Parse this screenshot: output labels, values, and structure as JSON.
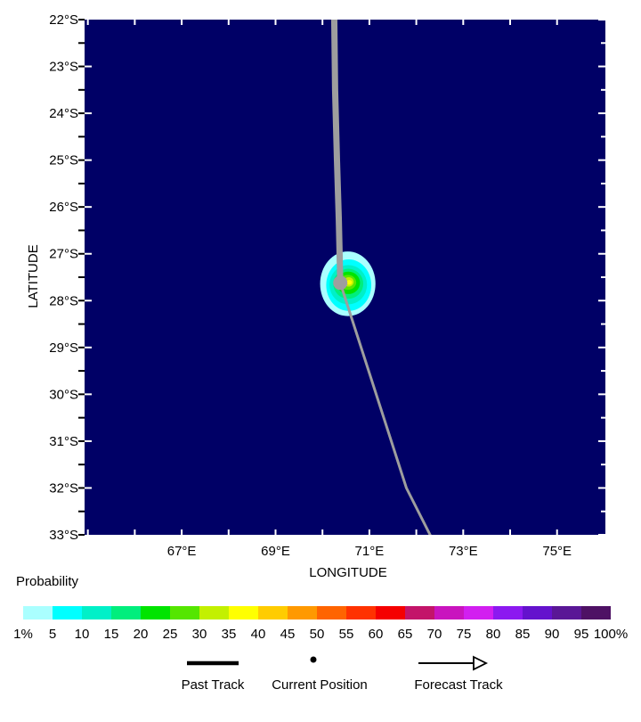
{
  "chart_data": {
    "type": "contour-map",
    "map_background_color": "#000066",
    "track_color": "#9e9e9e",
    "x_axis": {
      "label": "LONGITUDE",
      "range_deg_east": [
        64.93,
        76.03
      ],
      "tick_interval_deg": 1,
      "tick_labels": [
        {
          "value": 67,
          "text": "67°E"
        },
        {
          "value": 69,
          "text": "69°E"
        },
        {
          "value": 71,
          "text": "71°E"
        },
        {
          "value": 73,
          "text": "73°E"
        },
        {
          "value": 75,
          "text": "75°E"
        }
      ]
    },
    "y_axis": {
      "label": "LATITUDE",
      "range_deg_south": [
        22,
        33
      ],
      "tick_interval_deg": 0.5,
      "tick_labels": [
        {
          "value": 22,
          "text": "22°S"
        },
        {
          "value": 23,
          "text": "23°S"
        },
        {
          "value": 24,
          "text": "24°S"
        },
        {
          "value": 25,
          "text": "25°S"
        },
        {
          "value": 26,
          "text": "26°S"
        },
        {
          "value": 27,
          "text": "27°S"
        },
        {
          "value": 28,
          "text": "28°S"
        },
        {
          "value": 29,
          "text": "29°S"
        },
        {
          "value": 30,
          "text": "30°S"
        },
        {
          "value": 31,
          "text": "31°S"
        },
        {
          "value": 32,
          "text": "32°S"
        },
        {
          "value": 33,
          "text": "33°S"
        }
      ]
    },
    "past_track_points_lon_lat_s": [
      [
        70.25,
        21.9
      ],
      [
        70.27,
        23.5
      ],
      [
        70.31,
        25.0
      ],
      [
        70.35,
        26.3
      ],
      [
        70.38,
        27.62
      ]
    ],
    "forecast_track_points_lon_lat_s": [
      [
        70.38,
        27.62
      ],
      [
        71.79,
        32.0
      ],
      [
        72.42,
        33.25
      ]
    ],
    "current_position_lon_lat_s": [
      70.38,
      27.62
    ],
    "probability_contours": [
      {
        "percent": 1,
        "color": "#aaffff",
        "center_lon_lat_s": [
          70.54,
          27.64
        ],
        "radius_deg_lon_lat": [
          0.59,
          0.69
        ]
      },
      {
        "percent": 5,
        "color": "#00ffff",
        "center_lon_lat_s": [
          70.56,
          27.67
        ],
        "radius_deg_lon_lat": [
          0.48,
          0.55
        ]
      },
      {
        "percent": 10,
        "color": "#00f0c8",
        "center_lon_lat_s": [
          70.55,
          27.66
        ],
        "radius_deg_lon_lat": [
          0.4,
          0.42
        ]
      },
      {
        "percent": 15,
        "color": "#00ee7d",
        "center_lon_lat_s": [
          70.55,
          27.64
        ],
        "radius_deg_lon_lat": [
          0.32,
          0.32
        ]
      },
      {
        "percent": 20,
        "color": "#00e400",
        "center_lon_lat_s": [
          70.55,
          27.62
        ],
        "radius_deg_lon_lat": [
          0.25,
          0.24
        ]
      },
      {
        "percent": 25,
        "color": "#55e600",
        "center_lon_lat_s": [
          70.54,
          27.61
        ],
        "radius_deg_lon_lat": [
          0.18,
          0.16
        ]
      },
      {
        "percent": 30,
        "color": "#c3f000",
        "center_lon_lat_s": [
          70.56,
          27.6
        ],
        "radius_deg_lon_lat": [
          0.105,
          0.1
        ]
      },
      {
        "percent": 35,
        "color": "#ffff00",
        "center_lon_lat_s": [
          70.57,
          27.61
        ],
        "radius_deg_lon_lat": [
          0.06,
          0.05
        ]
      }
    ],
    "colorbar": {
      "title": "Probability",
      "tick_labels": [
        "1%",
        "5",
        "10",
        "15",
        "20",
        "25",
        "30",
        "35",
        "40",
        "45",
        "50",
        "55",
        "60",
        "65",
        "70",
        "75",
        "80",
        "85",
        "90",
        "95",
        "100%"
      ],
      "segment_colors": [
        "#aaffff",
        "#00ffff",
        "#00f0c8",
        "#00ee7d",
        "#00e400",
        "#55e600",
        "#c3f000",
        "#ffff00",
        "#ffcc00",
        "#ff9900",
        "#ff6400",
        "#ff3200",
        "#f50000",
        "#c31469",
        "#c914be",
        "#d21ff0",
        "#8c19f0",
        "#6412cd",
        "#5a1796",
        "#4e1164"
      ]
    },
    "legend": {
      "past_track": "Past Track",
      "current_position": "Current Position",
      "forecast_track": "Forecast Track"
    }
  }
}
